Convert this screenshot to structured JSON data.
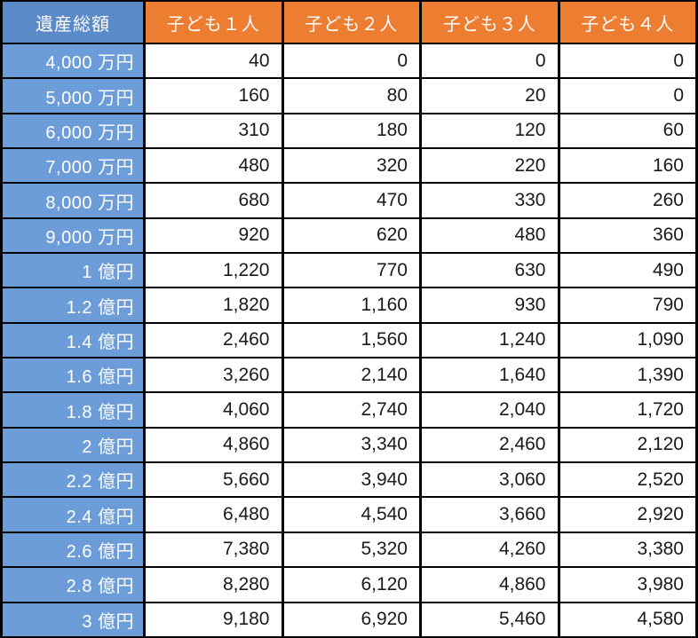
{
  "table": {
    "header": {
      "estate_total": "遺産総額",
      "children": [
        "子ども１人",
        "子ども２人",
        "子ども３人",
        "子ども４人"
      ]
    },
    "rows": [
      {
        "label": "4,000 万円",
        "values": [
          "40",
          "0",
          "0",
          "0"
        ]
      },
      {
        "label": "5,000 万円",
        "values": [
          "160",
          "80",
          "20",
          "0"
        ]
      },
      {
        "label": "6,000 万円",
        "values": [
          "310",
          "180",
          "120",
          "60"
        ]
      },
      {
        "label": "7,000 万円",
        "values": [
          "480",
          "320",
          "220",
          "160"
        ]
      },
      {
        "label": "8,000 万円",
        "values": [
          "680",
          "470",
          "330",
          "260"
        ]
      },
      {
        "label": "9,000 万円",
        "values": [
          "920",
          "620",
          "480",
          "360"
        ]
      },
      {
        "label": "1 億円",
        "values": [
          "1,220",
          "770",
          "630",
          "490"
        ]
      },
      {
        "label": "1.2 億円",
        "values": [
          "1,820",
          "1,160",
          "930",
          "790"
        ]
      },
      {
        "label": "1.4 億円",
        "values": [
          "2,460",
          "1,560",
          "1,240",
          "1,090"
        ]
      },
      {
        "label": "1.6 億円",
        "values": [
          "3,260",
          "2,140",
          "1,640",
          "1,390"
        ]
      },
      {
        "label": "1.8 億円",
        "values": [
          "4,060",
          "2,740",
          "2,040",
          "1,720"
        ]
      },
      {
        "label": "2 億円",
        "values": [
          "4,860",
          "3,340",
          "2,460",
          "2,120"
        ]
      },
      {
        "label": "2.2 億円",
        "values": [
          "5,660",
          "3,940",
          "3,060",
          "2,520"
        ]
      },
      {
        "label": "2.4 億円",
        "values": [
          "6,480",
          "4,540",
          "3,660",
          "2,920"
        ]
      },
      {
        "label": "2.6 億円",
        "values": [
          "7,380",
          "5,320",
          "4,260",
          "3,380"
        ]
      },
      {
        "label": "2.8 億円",
        "values": [
          "8,280",
          "6,120",
          "4,860",
          "3,980"
        ]
      },
      {
        "label": "3 億円",
        "values": [
          "9,180",
          "6,920",
          "5,460",
          "4,580"
        ]
      }
    ]
  },
  "colors": {
    "column_header_orange": "#ED7D31",
    "corner_header_blue": "#5B8AC8",
    "row_header_blue": "#6D9DD9",
    "grid_border": "#000000",
    "header_text": "#FFFFFF",
    "value_text": "#1A1A1A",
    "cell_background": "#FFFFFF"
  },
  "chart_data": {
    "type": "table",
    "title": "",
    "columns": [
      "遺産総額",
      "子ども１人",
      "子ども２人",
      "子ども３人",
      "子ども４人"
    ],
    "rows": [
      [
        "4,000 万円",
        40,
        0,
        0,
        0
      ],
      [
        "5,000 万円",
        160,
        80,
        20,
        0
      ],
      [
        "6,000 万円",
        310,
        180,
        120,
        60
      ],
      [
        "7,000 万円",
        480,
        320,
        220,
        160
      ],
      [
        "8,000 万円",
        680,
        470,
        330,
        260
      ],
      [
        "9,000 万円",
        920,
        620,
        480,
        360
      ],
      [
        "1 億円",
        1220,
        770,
        630,
        490
      ],
      [
        "1.2 億円",
        1820,
        1160,
        930,
        790
      ],
      [
        "1.4 億円",
        2460,
        1560,
        1240,
        1090
      ],
      [
        "1.6 億円",
        3260,
        2140,
        1640,
        1390
      ],
      [
        "1.8 億円",
        4060,
        2740,
        2040,
        1720
      ],
      [
        "2 億円",
        4860,
        3340,
        2460,
        2120
      ],
      [
        "2.2 億円",
        5660,
        3940,
        3060,
        2520
      ],
      [
        "2.4 億円",
        6480,
        4540,
        3660,
        2920
      ],
      [
        "2.6 億円",
        7380,
        5320,
        4260,
        3380
      ],
      [
        "2.8 億円",
        8280,
        6120,
        4860,
        3980
      ],
      [
        "3 億円",
        9180,
        6920,
        5460,
        4580
      ]
    ],
    "layout": {
      "grid": true,
      "first_column_role": "row-header",
      "value_alignment": "right"
    }
  }
}
